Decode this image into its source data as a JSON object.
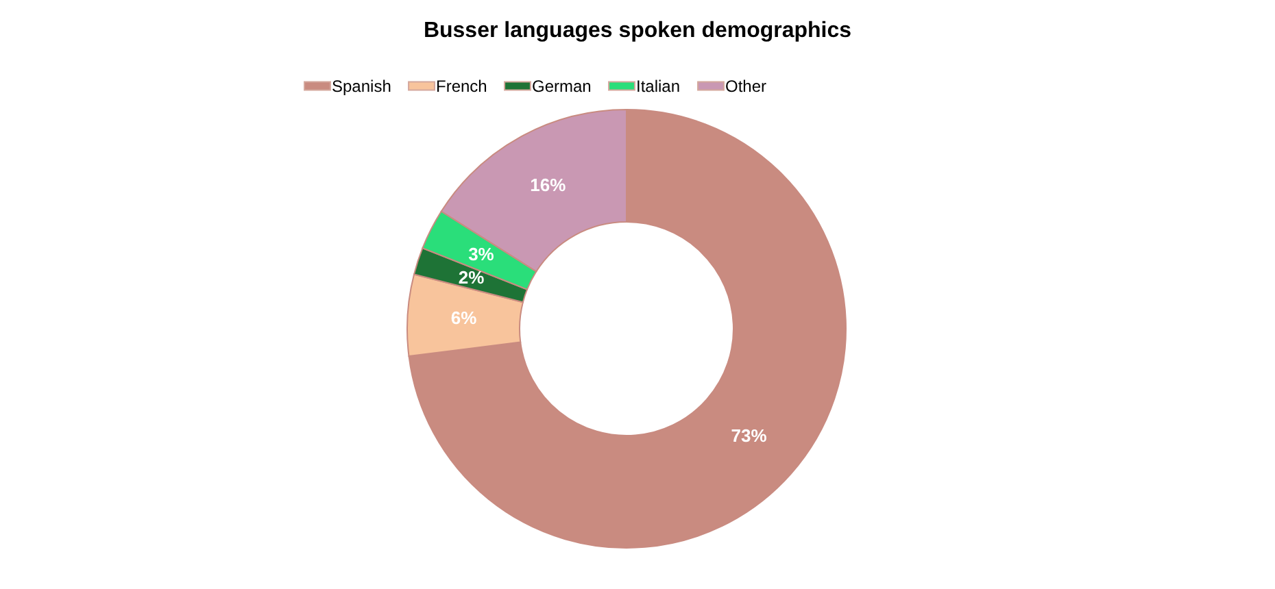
{
  "chart_data": {
    "type": "donut",
    "title": "Busser languages spoken demographics",
    "categories": [
      "Spanish",
      "French",
      "German",
      "Italian",
      "Other"
    ],
    "values": [
      73,
      6,
      2,
      3,
      16
    ],
    "colors": [
      "#c98b80",
      "#f8c49c",
      "#1e7336",
      "#2ade7a",
      "#c998b3"
    ],
    "value_labels": [
      "73%",
      "6%",
      "2%",
      "3%",
      "16%"
    ],
    "legend": "top"
  }
}
